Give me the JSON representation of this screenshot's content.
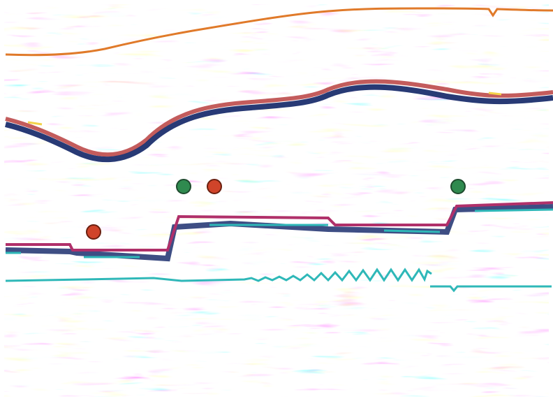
{
  "colors": {
    "background": "#ffffff",
    "trough": "#203f80",
    "peak": "#c46a64",
    "horizon_top": "#e07a2a",
    "horizon_interpreted": "#b0306a",
    "horizon_tracked": "#2fb8b8",
    "marker_green": "#2f8a4f",
    "marker_red": "#d0442a",
    "highlight": "#f2d34a"
  },
  "markers": [
    {
      "name": "well-marker-green-1",
      "color": "green"
    },
    {
      "name": "well-marker-red-1",
      "color": "red"
    },
    {
      "name": "well-marker-green-2",
      "color": "green"
    },
    {
      "name": "well-marker-red-2",
      "color": "red"
    }
  ],
  "horizons": [
    {
      "name": "horizon-top-orange",
      "color": "orange"
    },
    {
      "name": "horizon-interpreted-magenta",
      "color": "magenta"
    },
    {
      "name": "horizon-tracked-cyan",
      "color": "cyan"
    },
    {
      "name": "horizon-lower-cyan",
      "color": "cyan"
    }
  ]
}
